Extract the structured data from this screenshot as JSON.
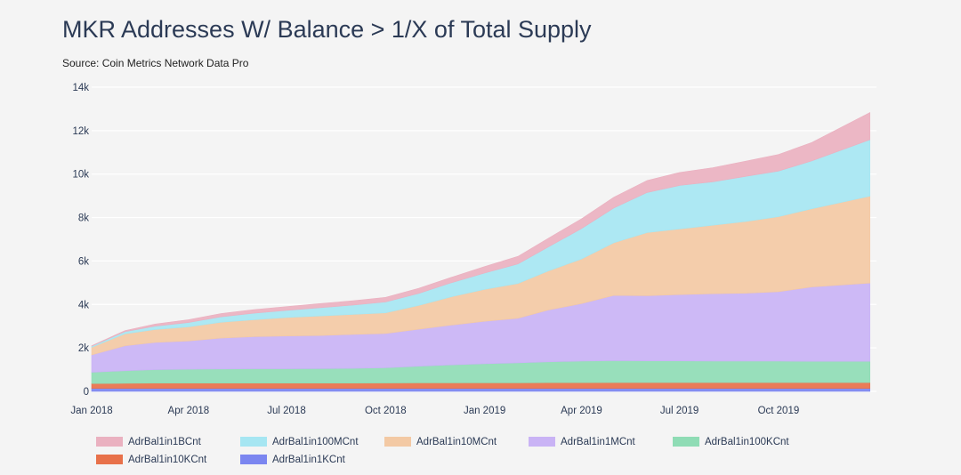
{
  "chart_data": {
    "type": "area",
    "stacked": true,
    "title": "MKR Addresses W/ Balance > 1/X of Total Supply",
    "subtitle": "Source: Coin Metrics Network Data Pro",
    "xlabel": "",
    "ylabel": "",
    "xlim": [
      "2018-01-01",
      "2019-12-31"
    ],
    "ylim": [
      0,
      14000
    ],
    "grid": true,
    "legend_position": "bottom",
    "x_ticks": [
      {
        "date": "2018-01-01",
        "label": "Jan 2018"
      },
      {
        "date": "2018-04-01",
        "label": "Apr 2018"
      },
      {
        "date": "2018-07-01",
        "label": "Jul 2018"
      },
      {
        "date": "2018-10-01",
        "label": "Oct 2018"
      },
      {
        "date": "2019-01-01",
        "label": "Jan 2019"
      },
      {
        "date": "2019-04-01",
        "label": "Apr 2019"
      },
      {
        "date": "2019-07-01",
        "label": "Jul 2019"
      },
      {
        "date": "2019-10-01",
        "label": "Oct 2019"
      }
    ],
    "y_ticks": [
      {
        "value": 0,
        "label": "0"
      },
      {
        "value": 2000,
        "label": "2k"
      },
      {
        "value": 4000,
        "label": "4k"
      },
      {
        "value": 6000,
        "label": "6k"
      },
      {
        "value": 8000,
        "label": "8k"
      },
      {
        "value": 10000,
        "label": "10k"
      },
      {
        "value": 12000,
        "label": "12k"
      },
      {
        "value": 14000,
        "label": "14k"
      }
    ],
    "x": [
      "2018-01-01",
      "2018-02-01",
      "2018-03-01",
      "2018-04-01",
      "2018-05-01",
      "2018-06-01",
      "2018-07-01",
      "2018-08-01",
      "2018-09-01",
      "2018-10-01",
      "2018-11-01",
      "2018-12-01",
      "2019-01-01",
      "2019-02-01",
      "2019-03-01",
      "2019-04-01",
      "2019-05-01",
      "2019-06-01",
      "2019-07-01",
      "2019-08-01",
      "2019-09-01",
      "2019-10-01",
      "2019-11-01",
      "2019-12-25"
    ],
    "series": [
      {
        "name": "AdrBal1in1KCnt",
        "color": "#7b86f0",
        "values": [
          140,
          140,
          140,
          140,
          140,
          140,
          140,
          140,
          140,
          140,
          140,
          140,
          140,
          140,
          140,
          140,
          140,
          140,
          140,
          140,
          140,
          140,
          140,
          140
        ]
      },
      {
        "name": "AdrBal1in10KCnt",
        "color": "#e8714a",
        "values": [
          220,
          230,
          240,
          240,
          240,
          240,
          240,
          240,
          240,
          245,
          250,
          250,
          255,
          255,
          260,
          260,
          265,
          265,
          265,
          265,
          265,
          265,
          265,
          265
        ]
      },
      {
        "name": "AdrBal1in100KCnt",
        "color": "#8fdcb5",
        "values": [
          520,
          580,
          620,
          640,
          650,
          660,
          660,
          670,
          680,
          700,
          770,
          830,
          880,
          920,
          960,
          990,
          1010,
          1000,
          1000,
          990,
          985,
          985,
          980,
          980
        ]
      },
      {
        "name": "AdrBal1in1MCnt",
        "color": "#c9b3f5",
        "values": [
          800,
          1150,
          1250,
          1300,
          1420,
          1480,
          1510,
          1520,
          1560,
          1580,
          1700,
          1830,
          1950,
          2050,
          2380,
          2650,
          3000,
          3000,
          3050,
          3100,
          3130,
          3200,
          3420,
          3600
        ]
      },
      {
        "name": "AdrBal1in10MCnt",
        "color": "#f3c9a4",
        "values": [
          350,
          550,
          600,
          650,
          730,
          780,
          850,
          900,
          920,
          950,
          1100,
          1300,
          1470,
          1600,
          1800,
          2050,
          2420,
          2900,
          3020,
          3150,
          3300,
          3450,
          3600,
          4000
        ]
      },
      {
        "name": "AdrBal1in100MCnt",
        "color": "#a6e6f2",
        "values": [
          50,
          100,
          150,
          200,
          250,
          300,
          330,
          380,
          430,
          500,
          550,
          650,
          750,
          900,
          1100,
          1400,
          1600,
          1850,
          2000,
          2000,
          2080,
          2100,
          2200,
          2600
        ]
      },
      {
        "name": "AdrBal1in1BCnt",
        "color": "#eab1c0",
        "values": [
          20,
          50,
          100,
          130,
          150,
          160,
          170,
          190,
          200,
          210,
          240,
          250,
          300,
          350,
          400,
          450,
          500,
          550,
          600,
          650,
          700,
          760,
          850,
          1250
        ]
      }
    ],
    "legend_order": [
      "AdrBal1in1BCnt",
      "AdrBal1in100MCnt",
      "AdrBal1in10MCnt",
      "AdrBal1in1MCnt",
      "AdrBal1in100KCnt",
      "AdrBal1in10KCnt",
      "AdrBal1in1KCnt"
    ]
  }
}
